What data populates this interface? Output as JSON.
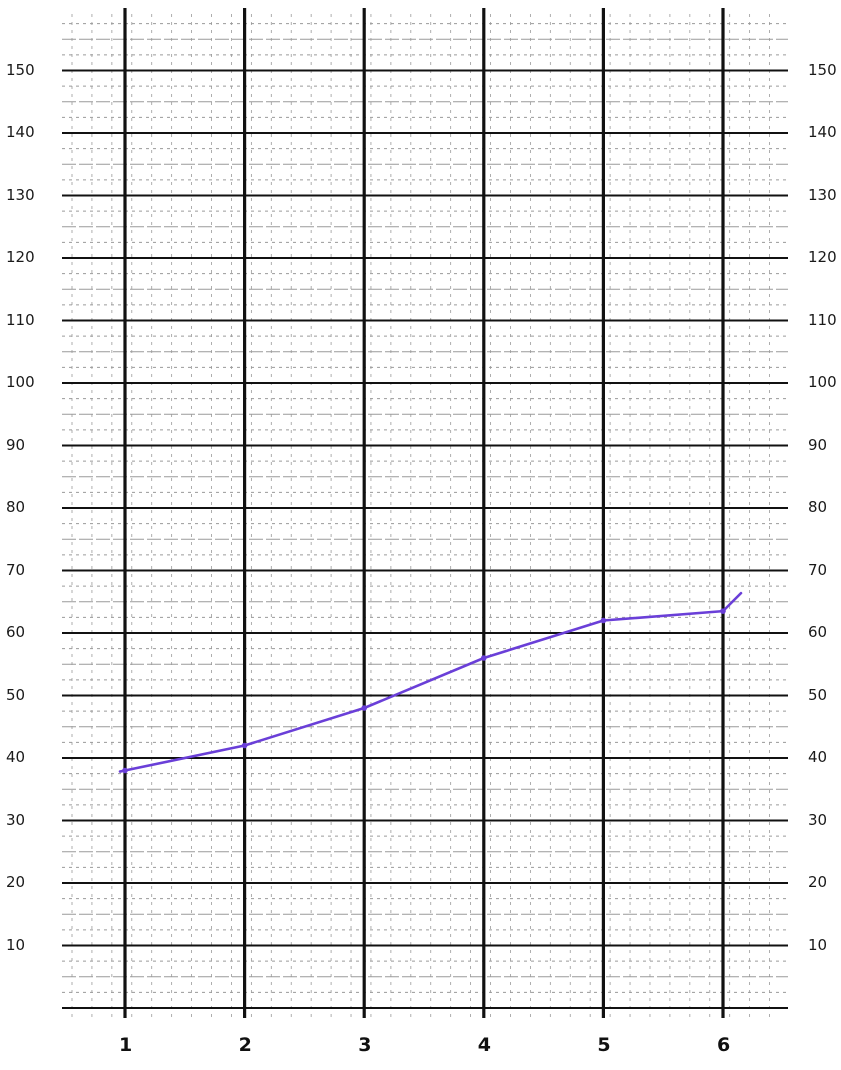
{
  "chart_data": {
    "type": "line",
    "title": "",
    "xlabel": "",
    "ylabel": "",
    "categories": [
      "1",
      "2",
      "3",
      "4",
      "5",
      "6"
    ],
    "x": [
      1,
      2,
      3,
      4,
      5,
      6
    ],
    "y_ticks": [
      "10",
      "20",
      "30",
      "40",
      "50",
      "60",
      "70",
      "80",
      "90",
      "100",
      "110",
      "120",
      "130",
      "140",
      "150"
    ],
    "y_tick_values": [
      10,
      20,
      30,
      40,
      50,
      60,
      70,
      80,
      90,
      100,
      110,
      120,
      130,
      140,
      150
    ],
    "series": [
      {
        "values": [
          38,
          42,
          48,
          56,
          62,
          63.5
        ],
        "color": "#6a3fd8"
      }
    ],
    "ylim": [
      0,
      160
    ],
    "xlim": [
      1,
      6
    ],
    "grid": true,
    "y_axis_labels_both_sides": true,
    "colors": {
      "line": "#6a3fd8",
      "grid_major": "#111111",
      "grid_minor": "#9a9a9a",
      "background": "#ffffff"
    }
  }
}
